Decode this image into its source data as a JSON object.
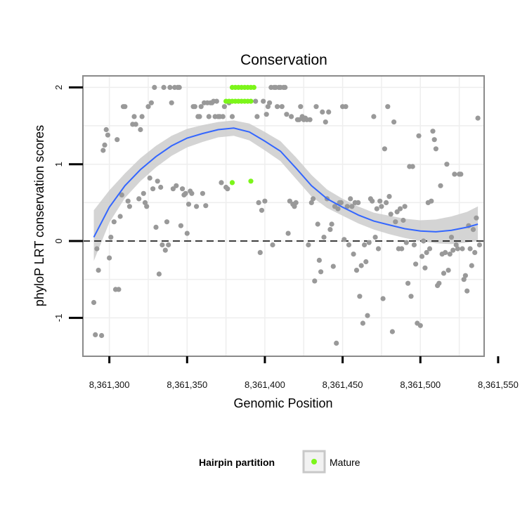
{
  "chart_data": {
    "type": "scatter",
    "title": "Conservation",
    "xlabel": "Genomic Position",
    "ylabel": "phyloP LRT conservation scores",
    "xlim": [
      8361283,
      8361541
    ],
    "ylim": [
      -1.5,
      2.15
    ],
    "x_ticks": [
      8361300,
      8361350,
      8361400,
      8361450,
      8361500,
      8361550
    ],
    "x_tick_labels": [
      "8,361,300",
      "8,361,350",
      "8,361,400",
      "8,361,450",
      "8,361,500",
      "8,361,550"
    ],
    "y_ticks": [
      -1,
      0,
      1,
      2
    ],
    "y_tick_labels": [
      "-1",
      "0",
      "1",
      "2"
    ],
    "grid": true,
    "reference_line": {
      "y": 0,
      "style": "dashed"
    },
    "colors": {
      "other": "#999999",
      "mature": "#7cf51a",
      "smooth": "#3366ff",
      "band": "#cccccc",
      "panel_border": "#8a8a8a",
      "grid": "#eeeeee"
    },
    "legend": {
      "title": "Hairpin partition",
      "position": "bottom",
      "entries": [
        {
          "label": "Mature",
          "color": "#7cf51a"
        }
      ]
    },
    "series": [
      {
        "name": "Mature",
        "color": "#7cf51a",
        "points": [
          [
            8361375,
            1.82
          ],
          [
            8361377,
            1.82
          ],
          [
            8361379,
            1.82
          ],
          [
            8361381,
            1.82
          ],
          [
            8361383,
            1.82
          ],
          [
            8361385,
            1.82
          ],
          [
            8361387,
            1.82
          ],
          [
            8361389,
            1.82
          ],
          [
            8361391,
            1.82
          ],
          [
            8361379,
            2.0
          ],
          [
            8361381,
            2.0
          ],
          [
            8361383,
            2.0
          ],
          [
            8361385,
            2.0
          ],
          [
            8361387,
            2.0
          ],
          [
            8361389,
            2.0
          ],
          [
            8361391,
            2.0
          ],
          [
            8361393,
            2.0
          ],
          [
            8361379,
            0.76
          ],
          [
            8361391,
            0.78
          ]
        ]
      },
      {
        "name": "Other",
        "color": "#999999",
        "points": [
          [
            8361290,
            -0.8
          ],
          [
            8361291,
            -1.22
          ],
          [
            8361292,
            -0.1
          ],
          [
            8361293,
            -0.38
          ],
          [
            8361295,
            -1.23
          ],
          [
            8361296,
            1.18
          ],
          [
            8361297,
            1.25
          ],
          [
            8361298,
            1.45
          ],
          [
            8361299,
            1.38
          ],
          [
            8361300,
            -0.22
          ],
          [
            8361301,
            0.05
          ],
          [
            8361303,
            0.25
          ],
          [
            8361304,
            -0.63
          ],
          [
            8361305,
            1.32
          ],
          [
            8361306,
            -0.63
          ],
          [
            8361307,
            0.32
          ],
          [
            8361308,
            0.6
          ],
          [
            8361309,
            1.75
          ],
          [
            8361310,
            1.75
          ],
          [
            8361312,
            0.52
          ],
          [
            8361313,
            0.45
          ],
          [
            8361315,
            1.52
          ],
          [
            8361316,
            1.62
          ],
          [
            8361317,
            1.52
          ],
          [
            8361319,
            0.55
          ],
          [
            8361320,
            1.45
          ],
          [
            8361321,
            1.62
          ],
          [
            8361322,
            0.62
          ],
          [
            8361323,
            0.5
          ],
          [
            8361324,
            0.45
          ],
          [
            8361325,
            1.75
          ],
          [
            8361326,
            0.82
          ],
          [
            8361327,
            1.8
          ],
          [
            8361328,
            0.68
          ],
          [
            8361329,
            2.0
          ],
          [
            8361330,
            0.18
          ],
          [
            8361331,
            0.78
          ],
          [
            8361332,
            -0.43
          ],
          [
            8361333,
            0.7
          ],
          [
            8361334,
            -0.05
          ],
          [
            8361335,
            2.0
          ],
          [
            8361336,
            -0.12
          ],
          [
            8361337,
            0.25
          ],
          [
            8361338,
            -0.05
          ],
          [
            8361339,
            2.0
          ],
          [
            8361340,
            1.8
          ],
          [
            8361341,
            0.68
          ],
          [
            8361342,
            2.0
          ],
          [
            8361343,
            0.72
          ],
          [
            8361344,
            2.0
          ],
          [
            8361345,
            2.0
          ],
          [
            8361346,
            0.2
          ],
          [
            8361347,
            0.68
          ],
          [
            8361348,
            0.6
          ],
          [
            8361349,
            0.62
          ],
          [
            8361350,
            0.1
          ],
          [
            8361351,
            0.48
          ],
          [
            8361352,
            0.65
          ],
          [
            8361353,
            0.62
          ],
          [
            8361354,
            1.75
          ],
          [
            8361355,
            1.75
          ],
          [
            8361356,
            0.45
          ],
          [
            8361357,
            1.62
          ],
          [
            8361358,
            1.62
          ],
          [
            8361359,
            1.75
          ],
          [
            8361360,
            0.62
          ],
          [
            8361361,
            1.8
          ],
          [
            8361362,
            0.46
          ],
          [
            8361363,
            1.8
          ],
          [
            8361364,
            1.62
          ],
          [
            8361365,
            1.8
          ],
          [
            8361366,
            1.8
          ],
          [
            8361367,
            1.82
          ],
          [
            8361368,
            1.62
          ],
          [
            8361369,
            1.82
          ],
          [
            8361370,
            1.62
          ],
          [
            8361371,
            1.62
          ],
          [
            8361372,
            0.76
          ],
          [
            8361373,
            1.62
          ],
          [
            8361374,
            1.75
          ],
          [
            8361375,
            0.7
          ],
          [
            8361376,
            0.68
          ],
          [
            8361377,
            1.8
          ],
          [
            8361379,
            1.62
          ],
          [
            8361394,
            1.82
          ],
          [
            8361395,
            1.62
          ],
          [
            8361396,
            0.5
          ],
          [
            8361397,
            -0.15
          ],
          [
            8361398,
            0.4
          ],
          [
            8361399,
            1.82
          ],
          [
            8361400,
            0.52
          ],
          [
            8361401,
            1.65
          ],
          [
            8361402,
            1.75
          ],
          [
            8361403,
            1.8
          ],
          [
            8361404,
            2.0
          ],
          [
            8361405,
            -0.05
          ],
          [
            8361406,
            2.0
          ],
          [
            8361407,
            2.0
          ],
          [
            8361408,
            1.75
          ],
          [
            8361409,
            2.0
          ],
          [
            8361410,
            2.0
          ],
          [
            8361411,
            1.75
          ],
          [
            8361412,
            2.0
          ],
          [
            8361413,
            2.0
          ],
          [
            8361414,
            1.65
          ],
          [
            8361415,
            0.1
          ],
          [
            8361416,
            0.52
          ],
          [
            8361417,
            1.62
          ],
          [
            8361418,
            0.48
          ],
          [
            8361419,
            0.45
          ],
          [
            8361420,
            0.5
          ],
          [
            8361421,
            1.58
          ],
          [
            8361422,
            1.58
          ],
          [
            8361423,
            1.75
          ],
          [
            8361424,
            1.62
          ],
          [
            8361425,
            1.58
          ],
          [
            8361426,
            1.6
          ],
          [
            8361427,
            1.58
          ],
          [
            8361428,
            -0.05
          ],
          [
            8361429,
            1.58
          ],
          [
            8361430,
            0.5
          ],
          [
            8361431,
            0.55
          ],
          [
            8361432,
            -0.52
          ],
          [
            8361433,
            1.75
          ],
          [
            8361434,
            0.22
          ],
          [
            8361435,
            -0.25
          ],
          [
            8361436,
            -0.4
          ],
          [
            8361437,
            1.68
          ],
          [
            8361438,
            0.05
          ],
          [
            8361439,
            1.55
          ],
          [
            8361440,
            0.55
          ],
          [
            8361441,
            1.68
          ],
          [
            8361442,
            0.15
          ],
          [
            8361443,
            0.22
          ],
          [
            8361444,
            -0.33
          ],
          [
            8361445,
            0.45
          ],
          [
            8361446,
            -1.33
          ],
          [
            8361447,
            0.42
          ],
          [
            8361448,
            0.5
          ],
          [
            8361449,
            0.5
          ],
          [
            8361450,
            1.75
          ],
          [
            8361451,
            0.02
          ],
          [
            8361452,
            1.75
          ],
          [
            8361453,
            0.45
          ],
          [
            8361454,
            -0.05
          ],
          [
            8361455,
            0.55
          ],
          [
            8361456,
            0.45
          ],
          [
            8361457,
            -0.17
          ],
          [
            8361458,
            0.5
          ],
          [
            8361459,
            -0.38
          ],
          [
            8361460,
            0.5
          ],
          [
            8361461,
            -0.72
          ],
          [
            8361462,
            -0.32
          ],
          [
            8361463,
            -1.07
          ],
          [
            8361464,
            -0.05
          ],
          [
            8361465,
            -0.27
          ],
          [
            8361466,
            -0.97
          ],
          [
            8361467,
            -0.02
          ],
          [
            8361468,
            0.55
          ],
          [
            8361469,
            0.52
          ],
          [
            8361470,
            1.62
          ],
          [
            8361471,
            0.05
          ],
          [
            8361472,
            0.42
          ],
          [
            8361473,
            -0.1
          ],
          [
            8361474,
            0.52
          ],
          [
            8361475,
            0.45
          ],
          [
            8361476,
            -0.75
          ],
          [
            8361477,
            1.2
          ],
          [
            8361478,
            0.5
          ],
          [
            8361479,
            1.75
          ],
          [
            8361480,
            0.58
          ],
          [
            8361481,
            0.35
          ],
          [
            8361482,
            -1.18
          ],
          [
            8361483,
            1.55
          ],
          [
            8361484,
            0.25
          ],
          [
            8361485,
            0.38
          ],
          [
            8361486,
            -0.1
          ],
          [
            8361487,
            0.42
          ],
          [
            8361488,
            -0.1
          ],
          [
            8361489,
            0.27
          ],
          [
            8361490,
            0.45
          ],
          [
            8361491,
            -0.02
          ],
          [
            8361492,
            -0.55
          ],
          [
            8361493,
            0.97
          ],
          [
            8361494,
            -0.72
          ],
          [
            8361495,
            0.97
          ],
          [
            8361496,
            -0.05
          ],
          [
            8361497,
            -0.3
          ],
          [
            8361498,
            -1.07
          ],
          [
            8361499,
            1.37
          ],
          [
            8361500,
            -1.1
          ],
          [
            8361501,
            -0.2
          ],
          [
            8361502,
            0.0
          ],
          [
            8361503,
            -0.35
          ],
          [
            8361504,
            -0.15
          ],
          [
            8361505,
            0.5
          ],
          [
            8361506,
            -0.1
          ],
          [
            8361507,
            0.52
          ],
          [
            8361508,
            1.43
          ],
          [
            8361509,
            1.32
          ],
          [
            8361510,
            1.2
          ],
          [
            8361511,
            -0.58
          ],
          [
            8361512,
            -0.55
          ],
          [
            8361513,
            0.72
          ],
          [
            8361514,
            -0.17
          ],
          [
            8361515,
            -0.42
          ],
          [
            8361516,
            -0.15
          ],
          [
            8361517,
            1.0
          ],
          [
            8361518,
            -0.38
          ],
          [
            8361519,
            -0.17
          ],
          [
            8361520,
            0.05
          ],
          [
            8361521,
            -0.12
          ],
          [
            8361522,
            0.87
          ],
          [
            8361523,
            -0.05
          ],
          [
            8361524,
            -0.1
          ],
          [
            8361525,
            0.87
          ],
          [
            8361526,
            0.87
          ],
          [
            8361527,
            -0.1
          ],
          [
            8361528,
            -0.5
          ],
          [
            8361529,
            -0.45
          ],
          [
            8361530,
            -0.65
          ],
          [
            8361531,
            0.2
          ],
          [
            8361532,
            -0.1
          ],
          [
            8361533,
            -0.32
          ],
          [
            8361534,
            0.15
          ],
          [
            8361535,
            -0.15
          ],
          [
            8361536,
            0.3
          ],
          [
            8361537,
            1.6
          ],
          [
            8361538,
            -0.05
          ]
        ]
      }
    ],
    "smooth": {
      "method": "loess",
      "x": [
        8361290,
        8361300,
        8361310,
        8361320,
        8361330,
        8361340,
        8361350,
        8361360,
        8361370,
        8361380,
        8361390,
        8361400,
        8361410,
        8361420,
        8361430,
        8361440,
        8361450,
        8361460,
        8361470,
        8361480,
        8361490,
        8361500,
        8361510,
        8361520,
        8361530,
        8361537
      ],
      "y": [
        0.05,
        0.44,
        0.72,
        0.93,
        1.1,
        1.24,
        1.34,
        1.4,
        1.45,
        1.47,
        1.42,
        1.3,
        1.17,
        0.95,
        0.72,
        0.55,
        0.44,
        0.34,
        0.26,
        0.21,
        0.16,
        0.13,
        0.12,
        0.14,
        0.18,
        0.22
      ],
      "lower": [
        -0.26,
        0.24,
        0.56,
        0.78,
        0.96,
        1.11,
        1.22,
        1.29,
        1.35,
        1.37,
        1.31,
        1.18,
        1.04,
        0.81,
        0.58,
        0.43,
        0.33,
        0.23,
        0.15,
        0.09,
        0.04,
        0.0,
        -0.03,
        -0.04,
        -0.02,
        0.0
      ],
      "upper": [
        0.4,
        0.66,
        0.88,
        1.08,
        1.24,
        1.37,
        1.46,
        1.51,
        1.55,
        1.57,
        1.53,
        1.42,
        1.3,
        1.09,
        0.86,
        0.67,
        0.55,
        0.45,
        0.37,
        0.33,
        0.29,
        0.27,
        0.28,
        0.32,
        0.38,
        0.45
      ]
    }
  }
}
